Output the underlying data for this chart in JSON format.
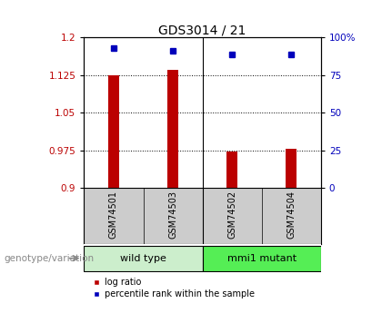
{
  "title": "GDS3014 / 21",
  "samples": [
    "GSM74501",
    "GSM74503",
    "GSM74502",
    "GSM74504"
  ],
  "log_ratios": [
    1.125,
    1.135,
    0.972,
    0.978
  ],
  "percentile_ranks": [
    93,
    91,
    89,
    89
  ],
  "ylim_left": [
    0.9,
    1.2
  ],
  "ylim_right": [
    0,
    100
  ],
  "yticks_left": [
    0.9,
    0.975,
    1.05,
    1.125,
    1.2
  ],
  "ytick_labels_left": [
    "0.9",
    "0.975",
    "1.05",
    "1.125",
    "1.2"
  ],
  "yticks_right": [
    0,
    25,
    50,
    75,
    100
  ],
  "ytick_labels_right": [
    "0",
    "25",
    "50",
    "75",
    "100%"
  ],
  "gridlines_at": [
    0.975,
    1.05,
    1.125
  ],
  "bar_color": "#bb0000",
  "dot_color": "#0000bb",
  "bar_width": 0.18,
  "baseline": 0.9,
  "groups": [
    {
      "label": "wild type",
      "indices": [
        0,
        1
      ],
      "color": "#cceecc"
    },
    {
      "label": "mmi1 mutant",
      "indices": [
        2,
        3
      ],
      "color": "#55ee55"
    }
  ],
  "legend_items": [
    {
      "label": "log ratio",
      "color": "#bb0000"
    },
    {
      "label": "percentile rank within the sample",
      "color": "#0000bb"
    }
  ],
  "background_color": "#ffffff",
  "plot_bg_color": "#ffffff",
  "genotype_label": "genotype/variation",
  "sample_box_color": "#cccccc"
}
